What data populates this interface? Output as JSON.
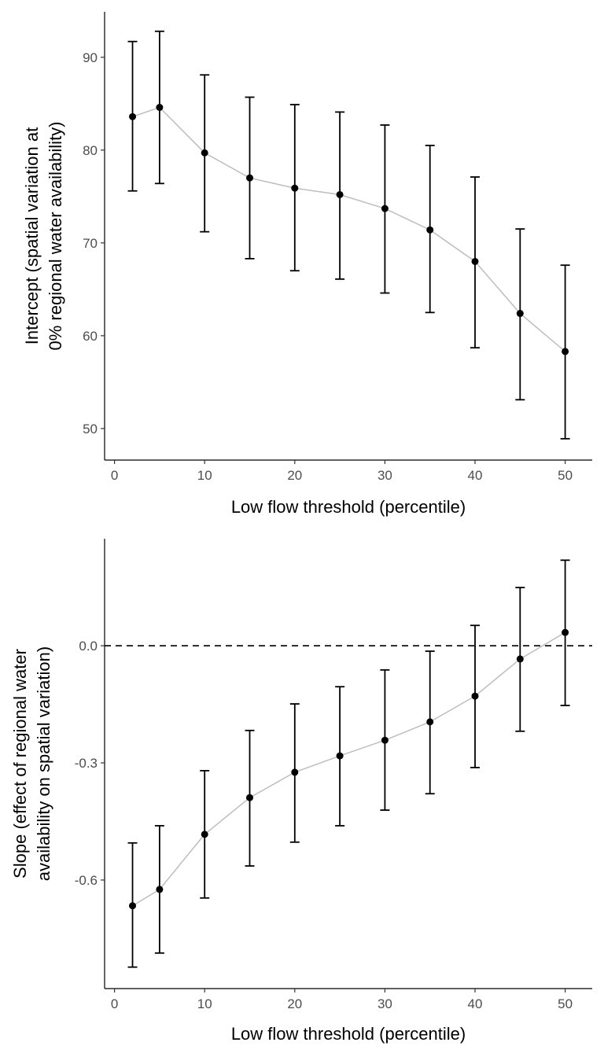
{
  "chart_data": [
    {
      "type": "line",
      "title": "",
      "xlabel": "Low flow threshold (percentile)",
      "ylabel": [
        "Intercept (spatial variation at",
        "0% regional water availability)"
      ],
      "x": [
        2,
        5,
        10,
        15,
        20,
        25,
        30,
        35,
        40,
        45,
        50
      ],
      "y": [
        83.6,
        84.6,
        79.7,
        77.0,
        75.9,
        75.2,
        73.7,
        71.4,
        68.0,
        62.4,
        58.3
      ],
      "ymin": [
        75.6,
        76.4,
        71.2,
        68.3,
        67.0,
        66.1,
        64.6,
        62.5,
        58.7,
        53.1,
        48.9
      ],
      "ymax": [
        91.7,
        92.8,
        88.1,
        85.7,
        84.9,
        84.1,
        82.7,
        80.5,
        77.1,
        71.5,
        67.6
      ],
      "xlim": [
        -1.1,
        53.0
      ],
      "ylim": [
        46.6,
        94.9
      ],
      "xticks": [
        0,
        10,
        20,
        30,
        40,
        50
      ],
      "yticks": [
        50,
        60,
        70,
        80,
        90
      ],
      "ytick_labels": [
        "50",
        "60",
        "70",
        "80",
        "90"
      ],
      "line_color": "#bebebe",
      "point_color": "#000000",
      "grid": false,
      "hline": null
    },
    {
      "type": "line",
      "title": "",
      "xlabel": "Low flow threshold (percentile)",
      "ylabel": [
        "Slope (effect of regional water",
        "availability on spatial variation)"
      ],
      "x": [
        2,
        5,
        10,
        15,
        20,
        25,
        30,
        35,
        40,
        45,
        50
      ],
      "y": [
        -0.666,
        -0.624,
        -0.483,
        -0.389,
        -0.324,
        -0.282,
        -0.242,
        -0.195,
        -0.129,
        -0.034,
        0.034
      ],
      "ymin": [
        -0.823,
        -0.787,
        -0.646,
        -0.564,
        -0.503,
        -0.461,
        -0.421,
        -0.379,
        -0.312,
        -0.219,
        -0.153
      ],
      "ymax": [
        -0.505,
        -0.461,
        -0.32,
        -0.217,
        -0.149,
        -0.105,
        -0.062,
        -0.014,
        0.052,
        0.149,
        0.219
      ],
      "xlim": [
        -1.1,
        53.0
      ],
      "ylim": [
        -0.878,
        0.274
      ],
      "xticks": [
        0,
        10,
        20,
        30,
        40,
        50
      ],
      "yticks": [
        -0.6,
        -0.3,
        0.0
      ],
      "ytick_labels": [
        "-0.6",
        "-0.3",
        "0.0"
      ],
      "line_color": "#bebebe",
      "point_color": "#000000",
      "grid": false,
      "hline": 0
    }
  ]
}
